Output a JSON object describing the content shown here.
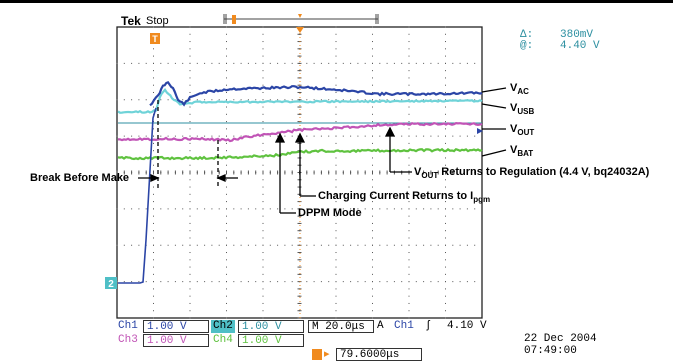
{
  "header": {
    "brand": "Tek",
    "state": "Stop",
    "trigger_marker": "T"
  },
  "cursor_readout": {
    "delta_label": "Δ:",
    "delta_value": "380mV",
    "at_label": "@:",
    "at_value": "4.40 V"
  },
  "channel_markers": {
    "ch2": "2"
  },
  "traces": [
    {
      "name": "VAC",
      "label_main": "V",
      "label_sub": "AC",
      "color": "#2b45a6"
    },
    {
      "name": "VUSB",
      "label_main": "V",
      "label_sub": "USB",
      "color": "#6fd3d8"
    },
    {
      "name": "VOUT",
      "label_main": "V",
      "label_sub": "OUT",
      "color": "#c154b6"
    },
    {
      "name": "VBAT",
      "label_main": "V",
      "label_sub": "BAT",
      "color": "#5fc23f"
    }
  ],
  "annotations": {
    "break_before_make": "Break Before Make",
    "vout_returns_main": "V",
    "vout_returns_sub": "OUT",
    "vout_returns_rest": " Returns to Regulation (4.4 V, bq24032A)",
    "charging_current": "Charging Current Returns to I",
    "charging_current_sub": "pgm",
    "dppm_mode": "DPPM Mode"
  },
  "status_bar": {
    "row1": {
      "ch1_label": "Ch1",
      "ch1_value": "1.00 V",
      "ch2_label": "Ch2",
      "ch2_value": "1.00 V",
      "timebase": "M 20.0μs",
      "trigger_mode": "A",
      "trigger_source": "Ch1",
      "trigger_slope": "ʃ",
      "trigger_level": "4.10 V"
    },
    "row2": {
      "ch3_label": "Ch3",
      "ch3_value": "1.00 V",
      "ch4_label": "Ch4",
      "ch4_value": "1.00 V"
    },
    "trigger_position": "79.6000μs",
    "date": "22 Dec 2004",
    "time": "07:49:00"
  },
  "colors": {
    "ch1": "#2b45a6",
    "ch2": "#4fbfc6",
    "ch3": "#c154b6",
    "ch4": "#5fc23f",
    "trigger": "#f08a1e",
    "cursor": "#2c8fa0"
  }
}
